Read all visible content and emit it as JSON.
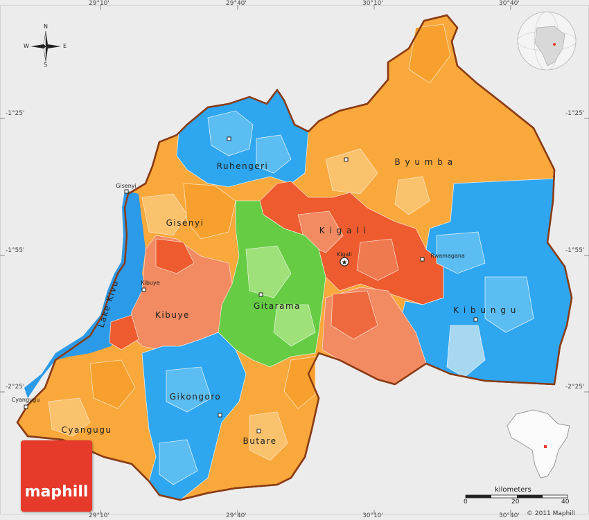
{
  "map": {
    "country": "Rwanda",
    "colors": {
      "background": "#ececec",
      "border": "#8a3b14",
      "lake": "#2b9ae8",
      "orange": "#f9a83c",
      "light_orange": "#fbc26e",
      "red": "#ee5b2e",
      "salmon": "#f28a62",
      "green": "#66cc44",
      "light_green": "#9ee07a",
      "blue": "#2ea6f0",
      "light_blue": "#5bbdf2",
      "pale_blue": "#a7d8f0"
    }
  },
  "axes": {
    "top_ticks": [
      "29°10'",
      "29°40'",
      "30°10'",
      "30°40'"
    ],
    "bottom_ticks": [
      "29°10'",
      "29°40'",
      "30°10'",
      "30°40'"
    ],
    "left_ticks": [
      "-1°25'",
      "-1°55'",
      "-2°25'"
    ],
    "right_ticks": [
      "-1°25'",
      "-1°55'",
      "-2°25'"
    ]
  },
  "compass": {
    "n": "N",
    "s": "S",
    "e": "E",
    "w": "W"
  },
  "regions": {
    "ruhengeri": "Ruhengeri",
    "byumba": "B y u m b a",
    "gisenyi": "Gisenyi",
    "kigali": "K i g a l i",
    "gitarama": "Gitarama",
    "kibuye": "Kibuye",
    "kibungu": "K i b u n g u",
    "gikongoro": "Gikongoro",
    "butare": "Butare",
    "cyangugu": "Cyangugu"
  },
  "lake": "Lake Kivu",
  "cities": {
    "gisenyi": "Gisenyi",
    "kibuye": "Kibuye",
    "kigali": "Kigali",
    "rwamagana": "Rwamagana",
    "cyangugu": "Cyangugu"
  },
  "scale": {
    "title": "kilometers",
    "ticks": [
      "0",
      "20",
      "40"
    ]
  },
  "brand": {
    "logo": "maphill",
    "copyright": "© 2011 Maphill"
  }
}
